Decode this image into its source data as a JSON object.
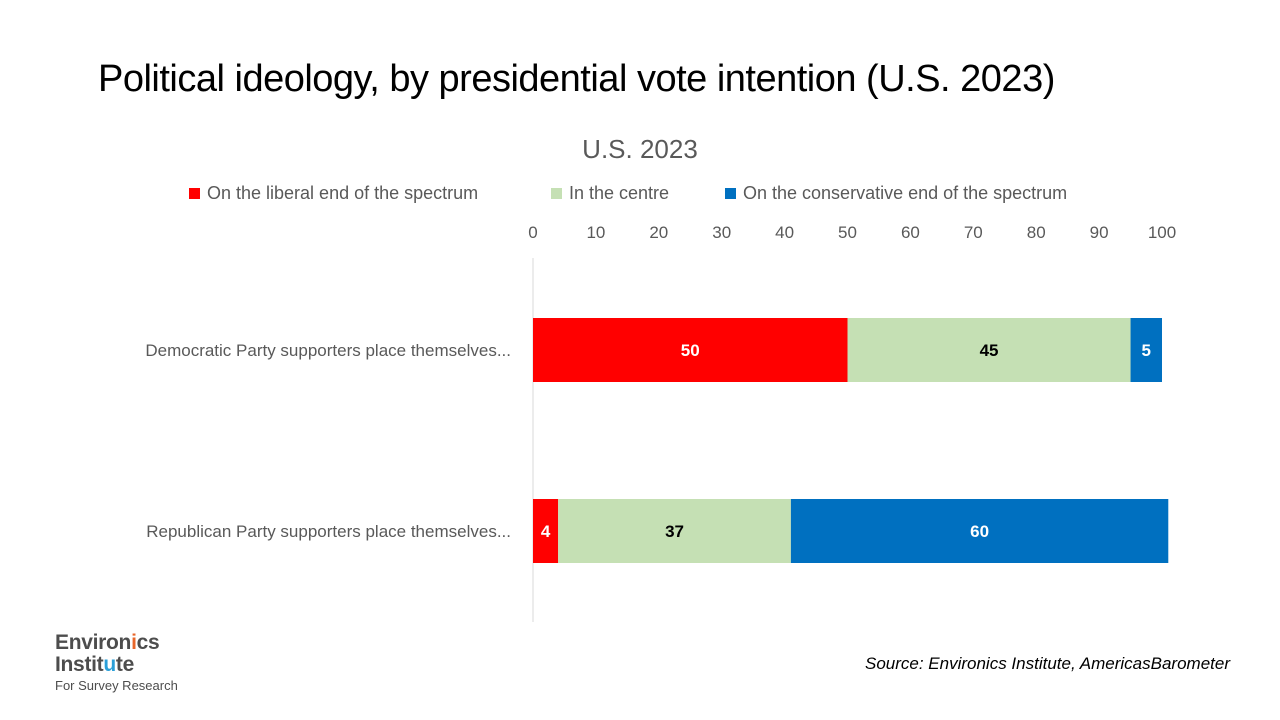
{
  "slide": {
    "title": "Political ideology, by presidential vote intention (U.S. 2023)",
    "source": "Source: Environics Institute, AmericasBarometer"
  },
  "logo": {
    "line1_a": "Environ",
    "line1_b": "i",
    "line1_c": "cs",
    "line2_a": "Instit",
    "line2_b": "u",
    "line2_c": "te",
    "line3": "For Survey Research"
  },
  "chart_data": {
    "type": "bar",
    "orientation": "horizontal",
    "stacked": true,
    "title": "U.S. 2023",
    "categories": [
      "Democratic Party supporters place themselves...",
      "Republican Party supporters place themselves..."
    ],
    "series": [
      {
        "name": "On the liberal end of the spectrum",
        "values": [
          50,
          4
        ],
        "color": "#ff0000",
        "label_color": "#ffffff"
      },
      {
        "name": "In the centre",
        "values": [
          45,
          37
        ],
        "color": "#c5e0b4",
        "label_color": "#000000"
      },
      {
        "name": "On the conservative end of the spectrum",
        "values": [
          5,
          60
        ],
        "color": "#0070c0",
        "label_color": "#ffffff"
      }
    ],
    "xlim": [
      0,
      100
    ],
    "xticks": [
      0,
      10,
      20,
      30,
      40,
      50,
      60,
      70,
      80,
      90,
      100
    ],
    "axis_position": "top",
    "legend_position": "top",
    "grid": false
  }
}
